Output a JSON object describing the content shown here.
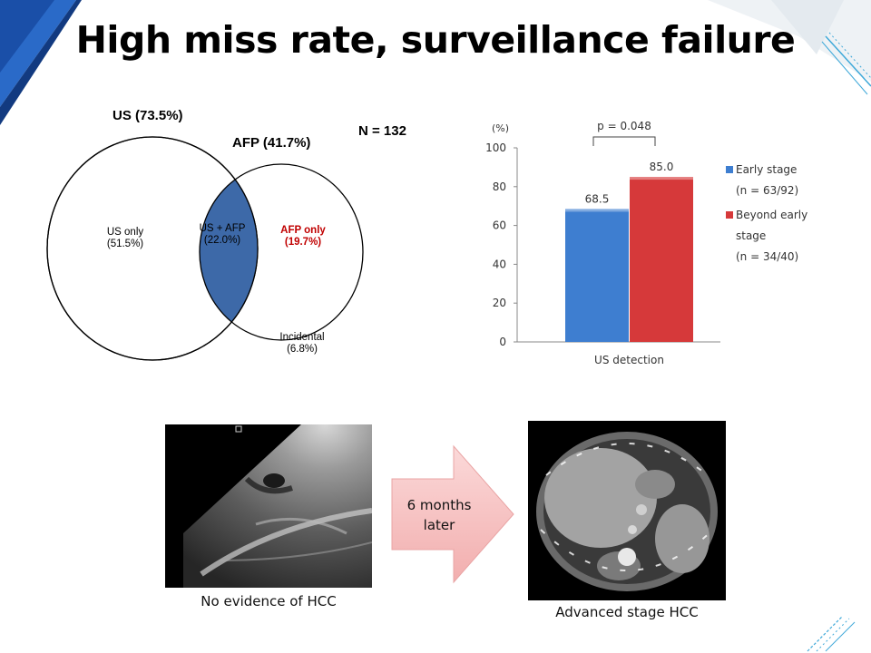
{
  "title": "High miss rate, surveillance failure",
  "venn": {
    "us_label": "US (73.5%)",
    "afp_label": "AFP (41.7%)",
    "n_label": "N = 132",
    "us_only_line1": "US only",
    "us_only_line2": "(51.5%)",
    "both_line1": "US + AFP",
    "both_line2": "(22.0%)",
    "afp_only_line1": "AFP only",
    "afp_only_line2": "(19.7%)",
    "incidental_line1": "Incidental",
    "incidental_line2": "(6.8%)",
    "colors": {
      "overlap": "#3d69a8",
      "afp_only_text": "#c00000"
    }
  },
  "chart_data": {
    "type": "bar",
    "ylabel": "(%)",
    "ylim": [
      0,
      100
    ],
    "yticks": [
      "0",
      "20",
      "40",
      "60",
      "80",
      "100"
    ],
    "categories": [
      "US detection"
    ],
    "series": [
      {
        "name": "Early stage",
        "values": [
          68.5
        ],
        "value_label": "68.5",
        "color": "#3e7ed0"
      },
      {
        "name": "Beyond early stage",
        "values": [
          85.0
        ],
        "value_label": "85.0",
        "color": "#d6393a"
      }
    ],
    "annotation": "p = 0.048",
    "legend": [
      {
        "line1": "Early stage",
        "line2": "(n = 63/92)"
      },
      {
        "line1": "Beyond early",
        "line2": "stage",
        "line3": "(n = 34/40)"
      }
    ],
    "legend_position": "right",
    "grid": false
  },
  "images": {
    "left_caption": "No evidence of HCC",
    "right_caption": "Advanced stage HCC",
    "arrow_line1": "6 months",
    "arrow_line2": "later",
    "arrow_color": "#f7c7c7"
  }
}
